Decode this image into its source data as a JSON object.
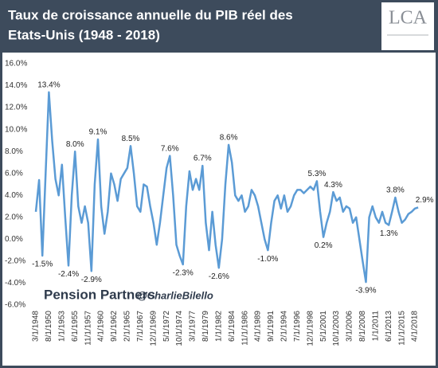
{
  "chart_data": {
    "type": "line",
    "title": [
      "Taux de croissance annuelle du PIB réel des",
      "Etats-Unis (1948 - 2018)"
    ],
    "logo": "LCA",
    "annotations": [
      "Pension Partners",
      "@CharlieBilello"
    ],
    "color": "#5b9bd5",
    "ylim": [
      -6,
      16
    ],
    "yticks": [
      {
        "value": -6,
        "label": "-6.0%"
      },
      {
        "value": -4,
        "label": "-4.0%"
      },
      {
        "value": -2,
        "label": "-2.0%"
      },
      {
        "value": 0,
        "label": "0.0%"
      },
      {
        "value": 2,
        "label": "2.0%"
      },
      {
        "value": 4,
        "label": "4.0%"
      },
      {
        "value": 6,
        "label": "6.0%"
      },
      {
        "value": 8,
        "label": "8.0%"
      },
      {
        "value": 10,
        "label": "10.0%"
      },
      {
        "value": 12,
        "label": "12.0%"
      },
      {
        "value": 14,
        "label": "14.0%"
      },
      {
        "value": 16,
        "label": "16.0%"
      }
    ],
    "categories": [
      "3/1/1948",
      null,
      null,
      null,
      "8/1/1950",
      null,
      null,
      null,
      "1/1/1953",
      null,
      null,
      null,
      "6/1/1955",
      null,
      null,
      null,
      "11/1/1957",
      null,
      null,
      null,
      "4/1/1960",
      null,
      null,
      null,
      "9/1/1962",
      null,
      null,
      null,
      "2/1/1965",
      null,
      null,
      null,
      "7/1/1967",
      null,
      null,
      null,
      "12/1/1969",
      null,
      null,
      null,
      "5/1/1972",
      null,
      null,
      null,
      "10/1/1974",
      null,
      null,
      null,
      "3/1/1977",
      null,
      null,
      null,
      "8/1/1979",
      null,
      null,
      null,
      "1/1/1982",
      null,
      null,
      null,
      "6/1/1984",
      null,
      null,
      null,
      "11/1/1986",
      null,
      null,
      null,
      "4/1/1989",
      null,
      null,
      null,
      "9/1/1991",
      null,
      null,
      null,
      "2/1/1994",
      null,
      null,
      null,
      "7/1/1996",
      null,
      null,
      null,
      "12/1/1998",
      null,
      null,
      null,
      "5/1/2001",
      null,
      null,
      null,
      "10/1/2003",
      null,
      null,
      null,
      "3/1/2006",
      null,
      null,
      null,
      "8/1/2008",
      null,
      null,
      null,
      "1/1/2011",
      null,
      null,
      null,
      "6/1/2013",
      null,
      null,
      null,
      "11/1/2015",
      null,
      null,
      null,
      "4/1/2018",
      null
    ],
    "values": [
      2.5,
      5.4,
      -1.5,
      6,
      13.4,
      9,
      5.5,
      4,
      6.8,
      2,
      -2.4,
      4,
      8.0,
      3,
      1.5,
      3,
      1.5,
      -2.9,
      5,
      9.1,
      3,
      0.5,
      2.5,
      6,
      5,
      3.5,
      5.5,
      6,
      6.5,
      8.5,
      6,
      3,
      2.5,
      5,
      4.8,
      3,
      1.5,
      -0.5,
      1.5,
      4,
      6.5,
      7.6,
      4,
      -0.5,
      -1.5,
      -2.3,
      3,
      6.2,
      4.5,
      5.5,
      4.5,
      6.7,
      1.5,
      -1,
      2.5,
      -0.5,
      -2.6,
      0,
      5,
      8.6,
      7,
      4,
      3.5,
      4,
      2.5,
      3,
      4.5,
      4,
      3,
      1.5,
      0,
      -1.0,
      1.5,
      3.5,
      4,
      2.8,
      4,
      2.5,
      3,
      4,
      4.5,
      4.5,
      4.2,
      4.5,
      4.8,
      4.5,
      5.3,
      2.5,
      0.2,
      1.5,
      2.5,
      4.3,
      3.5,
      3.8,
      2.5,
      3,
      2.8,
      1.5,
      2,
      0,
      -2,
      -3.9,
      2,
      3,
      2,
      1.5,
      2.5,
      1.5,
      1.3,
      2.5,
      3.8,
      2.5,
      1.5,
      1.8,
      2.3,
      2.5,
      2.8,
      2.9
    ],
    "value_labels": [
      null,
      null,
      "-1.5%",
      null,
      "13.4%",
      null,
      null,
      null,
      null,
      null,
      "-2.4%",
      null,
      "8.0%",
      null,
      null,
      null,
      null,
      "-2.9%",
      null,
      "9.1%",
      null,
      null,
      null,
      null,
      null,
      null,
      null,
      null,
      null,
      "8.5%",
      null,
      null,
      null,
      null,
      null,
      null,
      null,
      null,
      null,
      null,
      null,
      "7.6%",
      null,
      null,
      null,
      "-2.3%",
      null,
      null,
      null,
      null,
      null,
      "6.7%",
      null,
      null,
      null,
      null,
      "-2.6%",
      null,
      null,
      "8.6%",
      null,
      null,
      null,
      null,
      null,
      null,
      null,
      null,
      null,
      null,
      null,
      "-1.0%",
      null,
      null,
      null,
      null,
      null,
      null,
      null,
      null,
      null,
      null,
      null,
      null,
      null,
      null,
      "5.3%",
      null,
      "0.2%",
      null,
      null,
      "4.3%",
      null,
      null,
      null,
      null,
      null,
      null,
      null,
      null,
      null,
      "-3.9%",
      null,
      null,
      null,
      null,
      null,
      null,
      "1.3%",
      null,
      "3.8%",
      null,
      null,
      null,
      null,
      null,
      null,
      "2.9%"
    ]
  }
}
